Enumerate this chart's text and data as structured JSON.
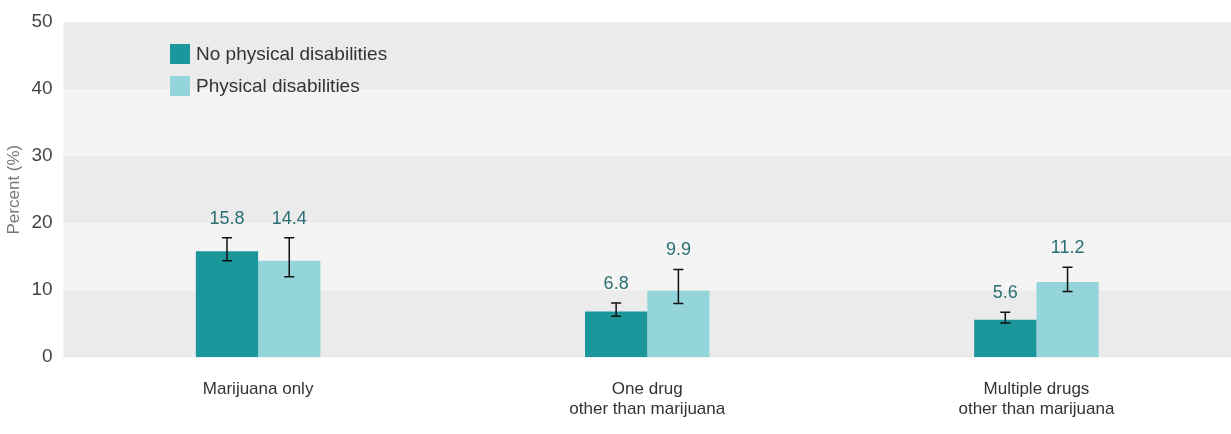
{
  "chart_data": {
    "type": "bar",
    "ylabel": "Percent (%)",
    "categories": [
      "Marijuana only",
      "One drug\nother than marijuana",
      "Multiple drugs\nother than marijuana"
    ],
    "series": [
      {
        "name": "No physical disabilities",
        "color": "#1b979c",
        "values": [
          15.8,
          6.8,
          5.6
        ],
        "errors": [
          [
            14.4,
            17.8
          ],
          [
            6.1,
            8.1
          ],
          [
            5.1,
            6.7
          ]
        ]
      },
      {
        "name": "Physical disabilities",
        "color": "#93d5db",
        "values": [
          14.4,
          9.9,
          11.2
        ],
        "errors": [
          [
            12.0,
            17.8
          ],
          [
            8.0,
            13.1
          ],
          [
            9.8,
            13.4
          ]
        ]
      }
    ],
    "ylim": [
      0,
      50
    ],
    "yticks": [
      0,
      10,
      20,
      30,
      40,
      50
    ],
    "bands": [
      {
        "axis": "y",
        "from": 0,
        "to": 10,
        "color": "#ebebeb"
      },
      {
        "axis": "y",
        "from": 20,
        "to": 30,
        "color": "#ebebeb"
      },
      {
        "axis": "y",
        "from": 40,
        "to": 50,
        "color": "#ebebeb"
      }
    ],
    "legend": "top left",
    "data_labels": true
  }
}
